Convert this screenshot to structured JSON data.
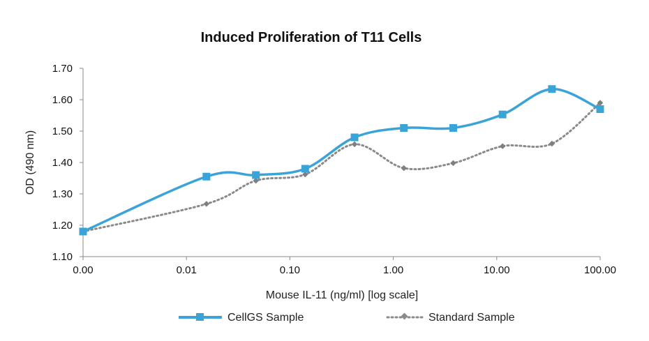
{
  "chart_data": {
    "type": "line",
    "title": "Induced Proliferation of T11 Cells",
    "xlabel": "Mouse IL-11 (ng/ml) [log scale]",
    "ylabel": "OD (490 nm)",
    "x_scale": "log",
    "x_tick_labels": [
      "0.00",
      "0.01",
      "0.10",
      "1.00",
      "10.00",
      "100.00"
    ],
    "xlim": [
      0.001,
      100
    ],
    "ylim": [
      1.1,
      1.7
    ],
    "y_ticks": [
      "1.10",
      "1.20",
      "1.30",
      "1.40",
      "1.50",
      "1.60",
      "1.70"
    ],
    "grid": false,
    "legend_position": "bottom",
    "series": [
      {
        "name": "CellGS Sample",
        "color": "#3aa4d8",
        "marker": "square",
        "line_style": "solid",
        "x": [
          0.001,
          0.0156,
          0.0469,
          0.1406,
          0.4219,
          1.2656,
          3.7969,
          11.39,
          34.17,
          100
        ],
        "y": [
          1.18,
          1.355,
          1.36,
          1.38,
          1.48,
          1.51,
          1.51,
          1.553,
          1.634,
          1.57
        ]
      },
      {
        "name": "Standard Sample",
        "color": "#8a8a8a",
        "marker": "diamond",
        "line_style": "dotted",
        "x": [
          0.001,
          0.0156,
          0.0469,
          0.1406,
          0.4219,
          1.2656,
          3.7969,
          11.39,
          34.17,
          100
        ],
        "y": [
          1.18,
          1.268,
          1.342,
          1.362,
          1.458,
          1.382,
          1.398,
          1.452,
          1.46,
          1.59
        ]
      }
    ]
  }
}
